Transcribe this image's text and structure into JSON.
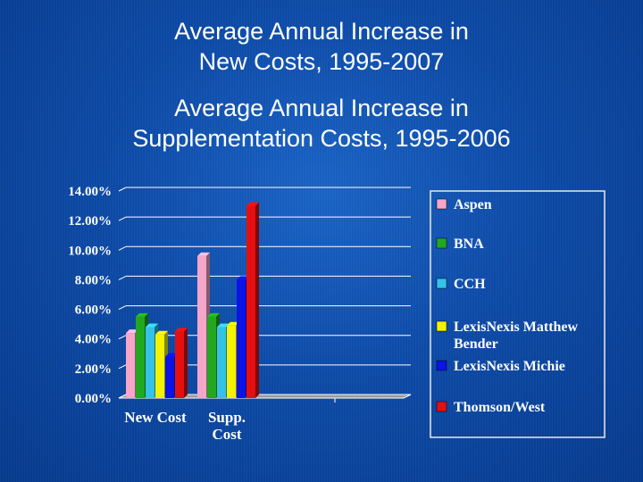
{
  "slide": {
    "title_line1": "Average  Annual Increase in",
    "title_line2": "New Costs, 1995-2007",
    "subtitle_line1": "Average Annual Increase in",
    "subtitle_line2": "Supplementation Costs, 1995-2006"
  },
  "chart_data": {
    "type": "bar",
    "title": "",
    "categories": [
      "New Cost",
      "Supp. Cost"
    ],
    "category_label_lines": [
      [
        "New Cost"
      ],
      [
        "Supp.",
        "Cost"
      ]
    ],
    "series": [
      {
        "name": "Aspen",
        "color": "#f6a6c8",
        "values": [
          4.4,
          9.6
        ]
      },
      {
        "name": "BNA",
        "color": "#22a81e",
        "values": [
          5.5,
          5.5
        ]
      },
      {
        "name": "CCH",
        "color": "#33c3e8",
        "values": [
          4.8,
          4.8
        ]
      },
      {
        "name": "LexisNexis Matthew Bender",
        "color": "#f5f200",
        "values": [
          4.3,
          4.9
        ]
      },
      {
        "name": "LexisNexis Michie",
        "color": "#0a14e6",
        "values": [
          2.8,
          8.0
        ]
      },
      {
        "name": "Thomson/West",
        "color": "#e60f0f",
        "values": [
          4.5,
          13.0
        ]
      }
    ],
    "legend_labels": [
      [
        "Aspen"
      ],
      [
        "BNA"
      ],
      [
        "CCH"
      ],
      [
        "LexisNexis Matthew",
        "Bender"
      ],
      [
        "LexisNexis Michie"
      ],
      [
        "Thomson/West"
      ]
    ],
    "ylim": [
      0,
      14
    ],
    "yticks": [
      "0.00%",
      "2.00%",
      "4.00%",
      "6.00%",
      "8.00%",
      "10.00%",
      "12.00%",
      "14.00%"
    ],
    "xlabel": "",
    "ylabel": "",
    "legend_position": "right"
  }
}
